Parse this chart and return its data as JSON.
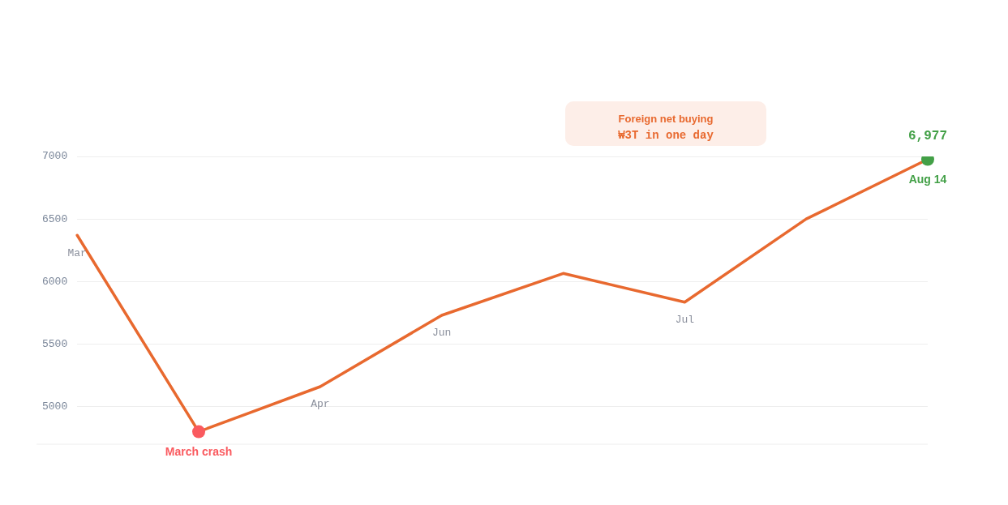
{
  "chart_data": {
    "type": "line",
    "categories": [
      "Mar",
      "March crash",
      "Apr",
      "Jun",
      null,
      "Jul",
      null,
      "Aug 14"
    ],
    "series": [
      {
        "color": "#e8692f",
        "values": [
          6370,
          4800,
          5160,
          5730,
          6065,
          5835,
          6500,
          6977
        ],
        "colors": [
          null,
          "#fa5a5f",
          null,
          null,
          null,
          null,
          null,
          "#43a047"
        ],
        "value_labels": [
          null,
          null,
          null,
          null,
          null,
          null,
          null,
          "6,977"
        ]
      }
    ],
    "ylim": [
      4700,
      7000
    ],
    "yticks": [
      5000,
      5500,
      6000,
      6500,
      7000
    ],
    "grid": "y",
    "legend": false,
    "marker": "none",
    "annotations": [
      "Foreign net buying",
      "₩3T in one day"
    ]
  }
}
